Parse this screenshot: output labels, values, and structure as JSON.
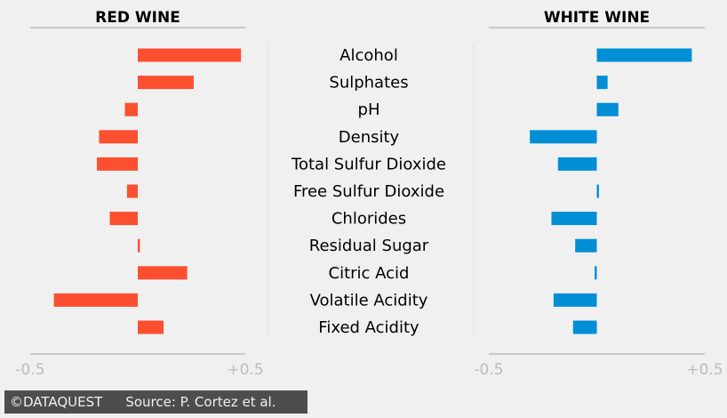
{
  "chart_data": {
    "type": "bar",
    "orientation": "horizontal",
    "categories": [
      "Alcohol",
      "Sulphates",
      "pH",
      "Density",
      "Total Sulfur Dioxide",
      "Free Sulfur Dioxide",
      "Chlorides",
      "Residual Sugar",
      "Citric Acid",
      "Volatile Acidity",
      "Fixed Acidity"
    ],
    "series": [
      {
        "name": "RED WINE",
        "color": "#fc4f30",
        "values": [
          0.48,
          0.26,
          -0.06,
          -0.18,
          -0.19,
          -0.05,
          -0.13,
          0.01,
          0.23,
          -0.39,
          0.12
        ]
      },
      {
        "name": "WHITE WINE",
        "color": "#008fd5",
        "values": [
          0.44,
          0.05,
          0.1,
          -0.31,
          -0.18,
          0.01,
          -0.21,
          -0.1,
          -0.01,
          -0.2,
          -0.11
        ]
      }
    ],
    "xlim": [
      -0.5,
      0.5
    ],
    "tick_labels": [
      "-0.5",
      "+0.5"
    ],
    "grid": false,
    "legend": "none"
  },
  "footer": {
    "brand": "©DATAQUEST",
    "source": "Source: P. Cortez et al."
  }
}
